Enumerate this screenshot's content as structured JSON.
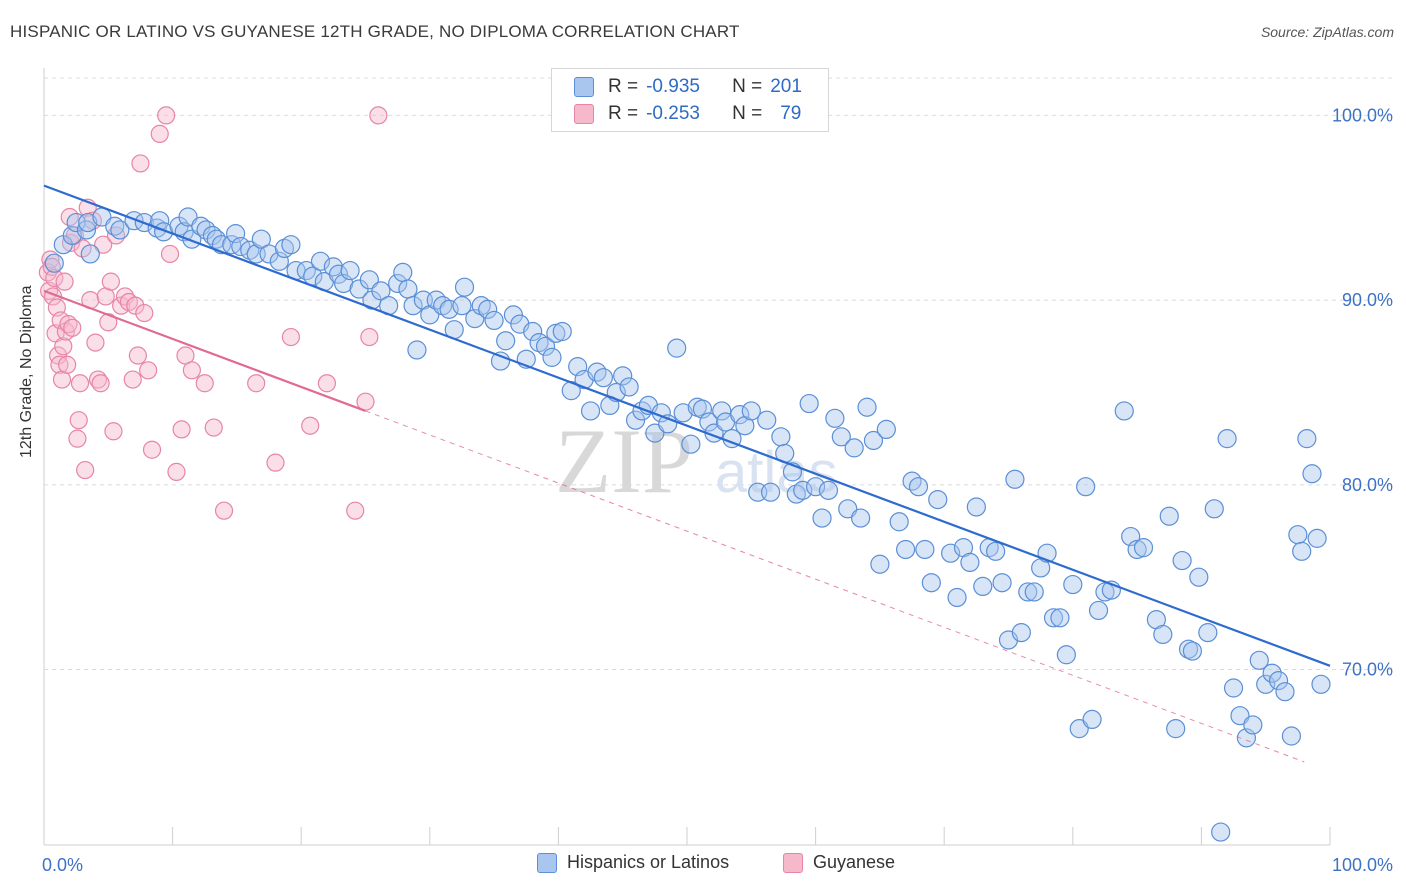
{
  "title": "HISPANIC OR LATINO VS GUYANESE 12TH GRADE, NO DIPLOMA CORRELATION CHART",
  "source": "Source: ZipAtlas.com",
  "watermark": "ZIPatlas",
  "legend_top": [
    {
      "r_label": "R =",
      "r_value": "-0.935",
      "n_label": "N =",
      "n_value": "201"
    },
    {
      "r_label": "R =",
      "r_value": "-0.253",
      "n_label": "N =",
      "n_value": "79"
    }
  ],
  "colors": {
    "blue_fill": "#a9c6ee",
    "blue_stroke": "#5b8fd6",
    "blue_line": "#2d6bd0",
    "pink_fill": "#f6b8cb",
    "pink_stroke": "#e785a6",
    "pink_line": "#e06a94",
    "tick_text": "#3d72c6",
    "grid": "#dcdcdc"
  },
  "chart_data": {
    "type": "scatter",
    "title": "HISPANIC OR LATINO VS GUYANESE 12TH GRADE, NO DIPLOMA CORRELATION CHART",
    "xlabel": "",
    "ylabel": "12th Grade, No Diploma",
    "xlim": [
      0,
      100
    ],
    "ylim": [
      60.5,
      103
    ],
    "x_tick_labels": [
      "0.0%",
      "100.0%"
    ],
    "y_ticks": [
      70,
      80,
      90,
      100
    ],
    "y_tick_labels": [
      "70.0%",
      "80.0%",
      "90.0%",
      "100.0%"
    ],
    "grid": true,
    "legend": "bottom-center",
    "series": [
      {
        "name": "Hispanics or Latinos",
        "color": "#a9c6ee",
        "r": -0.935,
        "n": 201,
        "trend": {
          "x": [
            0,
            100
          ],
          "y": [
            96.2,
            70.2
          ],
          "dashed_extension": false
        },
        "points": [
          [
            0.8,
            92.0
          ],
          [
            1.5,
            93.0
          ],
          [
            2.2,
            93.5
          ],
          [
            2.5,
            94.2
          ],
          [
            3.3,
            93.8
          ],
          [
            3.4,
            94.2
          ],
          [
            3.6,
            92.5
          ],
          [
            4.5,
            94.5
          ],
          [
            5.5,
            94.0
          ],
          [
            5.9,
            93.8
          ],
          [
            7.0,
            94.3
          ],
          [
            7.8,
            94.2
          ],
          [
            8.8,
            93.9
          ],
          [
            9.0,
            94.3
          ],
          [
            9.3,
            93.7
          ],
          [
            10.5,
            94.0
          ],
          [
            10.9,
            93.7
          ],
          [
            11.2,
            94.5
          ],
          [
            11.5,
            93.3
          ],
          [
            12.2,
            94.0
          ],
          [
            12.6,
            93.8
          ],
          [
            13.1,
            93.5
          ],
          [
            13.4,
            93.3
          ],
          [
            13.8,
            93.0
          ],
          [
            14.6,
            93.0
          ],
          [
            14.9,
            93.6
          ],
          [
            15.3,
            92.9
          ],
          [
            16.0,
            92.7
          ],
          [
            16.5,
            92.5
          ],
          [
            16.9,
            93.3
          ],
          [
            17.5,
            92.5
          ],
          [
            18.3,
            92.1
          ],
          [
            18.7,
            92.8
          ],
          [
            19.2,
            93.0
          ],
          [
            19.6,
            91.6
          ],
          [
            20.4,
            91.6
          ],
          [
            20.9,
            91.3
          ],
          [
            21.5,
            92.1
          ],
          [
            21.8,
            91.0
          ],
          [
            22.5,
            91.8
          ],
          [
            22.9,
            91.4
          ],
          [
            23.3,
            90.9
          ],
          [
            23.8,
            91.6
          ],
          [
            24.5,
            90.6
          ],
          [
            25.3,
            91.1
          ],
          [
            25.5,
            90.0
          ],
          [
            26.2,
            90.5
          ],
          [
            26.8,
            89.7
          ],
          [
            27.5,
            90.9
          ],
          [
            27.9,
            91.5
          ],
          [
            28.3,
            90.6
          ],
          [
            28.7,
            89.7
          ],
          [
            29.0,
            87.3
          ],
          [
            29.5,
            90.0
          ],
          [
            30.0,
            89.2
          ],
          [
            30.5,
            90.0
          ],
          [
            31.0,
            89.7
          ],
          [
            31.5,
            89.5
          ],
          [
            31.9,
            88.4
          ],
          [
            32.5,
            89.7
          ],
          [
            32.7,
            90.7
          ],
          [
            33.5,
            89.0
          ],
          [
            34.0,
            89.7
          ],
          [
            34.5,
            89.5
          ],
          [
            35.0,
            88.9
          ],
          [
            35.5,
            86.7
          ],
          [
            35.9,
            87.8
          ],
          [
            36.5,
            89.2
          ],
          [
            37.0,
            88.7
          ],
          [
            37.5,
            86.8
          ],
          [
            38.0,
            88.3
          ],
          [
            38.5,
            87.7
          ],
          [
            39.0,
            87.5
          ],
          [
            39.5,
            86.9
          ],
          [
            39.8,
            88.2
          ],
          [
            40.3,
            88.3
          ],
          [
            41.0,
            85.1
          ],
          [
            41.5,
            86.4
          ],
          [
            42.0,
            85.7
          ],
          [
            42.5,
            84.0
          ],
          [
            43.0,
            86.1
          ],
          [
            43.5,
            85.8
          ],
          [
            44.0,
            84.3
          ],
          [
            44.5,
            85.0
          ],
          [
            45.0,
            85.9
          ],
          [
            45.5,
            85.3
          ],
          [
            46.0,
            83.5
          ],
          [
            46.5,
            84.0
          ],
          [
            47.0,
            84.3
          ],
          [
            47.5,
            82.8
          ],
          [
            48.0,
            83.9
          ],
          [
            48.5,
            83.3
          ],
          [
            49.2,
            87.4
          ],
          [
            49.7,
            83.9
          ],
          [
            50.3,
            82.2
          ],
          [
            50.8,
            84.2
          ],
          [
            51.2,
            84.1
          ],
          [
            51.7,
            83.4
          ],
          [
            52.1,
            82.8
          ],
          [
            52.7,
            84.0
          ],
          [
            53.0,
            83.4
          ],
          [
            53.5,
            82.5
          ],
          [
            54.1,
            83.8
          ],
          [
            54.5,
            83.2
          ],
          [
            55.0,
            84.0
          ],
          [
            55.5,
            79.6
          ],
          [
            56.2,
            83.5
          ],
          [
            56.5,
            79.6
          ],
          [
            57.3,
            82.6
          ],
          [
            57.6,
            81.7
          ],
          [
            58.2,
            80.7
          ],
          [
            58.5,
            79.5
          ],
          [
            59.0,
            79.7
          ],
          [
            59.5,
            84.4
          ],
          [
            60.0,
            79.9
          ],
          [
            60.5,
            78.2
          ],
          [
            61.0,
            79.7
          ],
          [
            61.5,
            83.6
          ],
          [
            62.0,
            82.6
          ],
          [
            62.5,
            78.7
          ],
          [
            63.0,
            82.0
          ],
          [
            63.5,
            78.2
          ],
          [
            64.0,
            84.2
          ],
          [
            64.5,
            82.4
          ],
          [
            65.0,
            75.7
          ],
          [
            65.5,
            83.0
          ],
          [
            66.5,
            78.0
          ],
          [
            67.0,
            76.5
          ],
          [
            67.5,
            80.2
          ],
          [
            68.0,
            79.9
          ],
          [
            68.5,
            76.5
          ],
          [
            69.0,
            74.7
          ],
          [
            69.5,
            79.2
          ],
          [
            70.5,
            76.3
          ],
          [
            71.0,
            73.9
          ],
          [
            71.5,
            76.6
          ],
          [
            72.0,
            75.8
          ],
          [
            72.5,
            78.8
          ],
          [
            73.0,
            74.5
          ],
          [
            73.5,
            76.6
          ],
          [
            74.0,
            76.4
          ],
          [
            74.5,
            74.7
          ],
          [
            75.0,
            71.6
          ],
          [
            75.5,
            80.3
          ],
          [
            76.0,
            72.0
          ],
          [
            76.5,
            74.2
          ],
          [
            77.0,
            74.2
          ],
          [
            77.5,
            75.5
          ],
          [
            78.0,
            76.3
          ],
          [
            78.5,
            72.8
          ],
          [
            79.0,
            72.8
          ],
          [
            79.5,
            70.8
          ],
          [
            80.0,
            74.6
          ],
          [
            80.5,
            66.8
          ],
          [
            81.0,
            79.9
          ],
          [
            81.5,
            67.3
          ],
          [
            82.0,
            73.2
          ],
          [
            82.5,
            74.2
          ],
          [
            83.0,
            74.3
          ],
          [
            84.0,
            84.0
          ],
          [
            84.5,
            77.2
          ],
          [
            85.0,
            76.5
          ],
          [
            85.5,
            76.6
          ],
          [
            86.5,
            72.7
          ],
          [
            87.0,
            71.9
          ],
          [
            87.5,
            78.3
          ],
          [
            88.0,
            66.8
          ],
          [
            88.5,
            75.9
          ],
          [
            89.0,
            71.1
          ],
          [
            89.3,
            71.0
          ],
          [
            89.8,
            75.0
          ],
          [
            90.5,
            72.0
          ],
          [
            91.0,
            78.7
          ],
          [
            91.5,
            61.2
          ],
          [
            92.0,
            82.5
          ],
          [
            92.5,
            69.0
          ],
          [
            93.0,
            67.5
          ],
          [
            93.5,
            66.3
          ],
          [
            94.0,
            67.0
          ],
          [
            94.5,
            70.5
          ],
          [
            95.0,
            69.2
          ],
          [
            95.5,
            69.8
          ],
          [
            96.0,
            69.4
          ],
          [
            96.5,
            68.8
          ],
          [
            97.0,
            66.4
          ],
          [
            97.5,
            77.3
          ],
          [
            97.8,
            76.4
          ],
          [
            98.2,
            82.5
          ],
          [
            98.6,
            80.6
          ],
          [
            99.0,
            77.1
          ],
          [
            99.3,
            69.2
          ]
        ]
      },
      {
        "name": "Guyanese",
        "color": "#f6b8cb",
        "r": -0.253,
        "n": 79,
        "trend": {
          "x": [
            0,
            25
          ],
          "y": [
            90.5,
            84.0
          ],
          "dashed_extension": {
            "x": [
              25,
              98
            ],
            "y": [
              84.0,
              65.0
            ]
          }
        },
        "points": [
          [
            0.3,
            91.5
          ],
          [
            0.4,
            90.5
          ],
          [
            0.5,
            92.2
          ],
          [
            0.6,
            91.8
          ],
          [
            0.7,
            90.2
          ],
          [
            0.8,
            91.2
          ],
          [
            0.9,
            88.2
          ],
          [
            1.0,
            89.6
          ],
          [
            1.1,
            87.0
          ],
          [
            1.2,
            86.5
          ],
          [
            1.3,
            88.9
          ],
          [
            1.4,
            85.7
          ],
          [
            1.5,
            87.5
          ],
          [
            1.6,
            91.0
          ],
          [
            1.7,
            88.3
          ],
          [
            1.8,
            86.5
          ],
          [
            1.9,
            88.7
          ],
          [
            2.0,
            94.5
          ],
          [
            2.1,
            93.1
          ],
          [
            2.2,
            88.5
          ],
          [
            2.4,
            93.5
          ],
          [
            2.6,
            82.5
          ],
          [
            2.7,
            83.5
          ],
          [
            2.8,
            85.5
          ],
          [
            3.0,
            92.8
          ],
          [
            3.2,
            80.8
          ],
          [
            3.4,
            95.0
          ],
          [
            3.6,
            90.0
          ],
          [
            3.8,
            94.3
          ],
          [
            4.0,
            87.7
          ],
          [
            4.2,
            85.7
          ],
          [
            4.4,
            85.5
          ],
          [
            4.6,
            93.0
          ],
          [
            4.8,
            90.2
          ],
          [
            5.0,
            88.8
          ],
          [
            5.2,
            91.0
          ],
          [
            5.4,
            82.9
          ],
          [
            5.6,
            93.5
          ],
          [
            6.0,
            89.7
          ],
          [
            6.3,
            90.2
          ],
          [
            6.6,
            89.9
          ],
          [
            6.9,
            85.7
          ],
          [
            7.1,
            89.7
          ],
          [
            7.3,
            87.0
          ],
          [
            7.5,
            97.4
          ],
          [
            7.8,
            89.3
          ],
          [
            8.1,
            86.2
          ],
          [
            8.4,
            81.9
          ],
          [
            9.0,
            99.0
          ],
          [
            9.5,
            100.0
          ],
          [
            9.8,
            92.5
          ],
          [
            10.3,
            80.7
          ],
          [
            10.7,
            83.0
          ],
          [
            11.0,
            87.0
          ],
          [
            11.5,
            86.2
          ],
          [
            12.5,
            85.5
          ],
          [
            13.2,
            83.1
          ],
          [
            14.0,
            78.6
          ],
          [
            16.5,
            85.5
          ],
          [
            18.0,
            81.2
          ],
          [
            19.2,
            88.0
          ],
          [
            20.7,
            83.2
          ],
          [
            22.0,
            85.5
          ],
          [
            24.2,
            78.6
          ],
          [
            25.0,
            84.5
          ],
          [
            25.3,
            88.0
          ],
          [
            26.0,
            100.0
          ]
        ]
      }
    ]
  }
}
